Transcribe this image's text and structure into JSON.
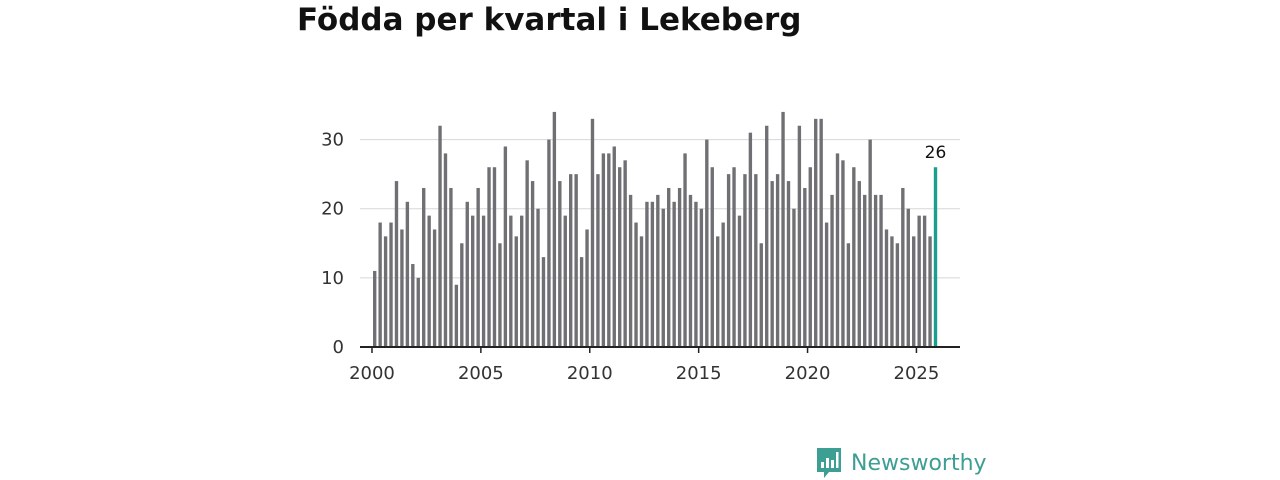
{
  "chart_data": {
    "type": "bar",
    "title": "Födda per kvartal i Lekeberg",
    "xlabel": "",
    "ylabel": "",
    "ylim": [
      0,
      35
    ],
    "yticks": [
      0,
      10,
      20,
      30
    ],
    "xticks": [
      2000,
      2005,
      2010,
      2015,
      2020,
      2025
    ],
    "xlim": [
      1999.45,
      2027.0
    ],
    "grid": true,
    "start_year": 2000,
    "quarters_per_year": 4,
    "values": [
      11,
      18,
      16,
      18,
      24,
      17,
      21,
      12,
      10,
      23,
      19,
      17,
      32,
      28,
      23,
      9,
      15,
      21,
      19,
      23,
      19,
      26,
      26,
      15,
      29,
      19,
      16,
      19,
      27,
      24,
      20,
      13,
      30,
      34,
      24,
      19,
      25,
      25,
      13,
      17,
      33,
      25,
      28,
      28,
      29,
      26,
      27,
      22,
      18,
      16,
      21,
      21,
      22,
      20,
      23,
      21,
      23,
      28,
      22,
      21,
      20,
      30,
      26,
      16,
      18,
      25,
      26,
      19,
      25,
      31,
      25,
      15,
      32,
      24,
      25,
      34,
      24,
      20,
      32,
      23,
      26,
      33,
      33,
      18,
      22,
      28,
      27,
      15,
      26,
      24,
      22,
      30,
      22,
      22,
      17,
      16,
      15,
      23,
      20,
      16,
      19,
      19,
      16,
      26
    ],
    "bar_color": "#707074",
    "highlight_color": "#1a9e8f",
    "highlight_index": 103,
    "highlight_label": "26"
  },
  "brand": {
    "name": "Newsworthy",
    "icon": "bar-chart-bubble-icon",
    "color": "#3d9e93"
  }
}
